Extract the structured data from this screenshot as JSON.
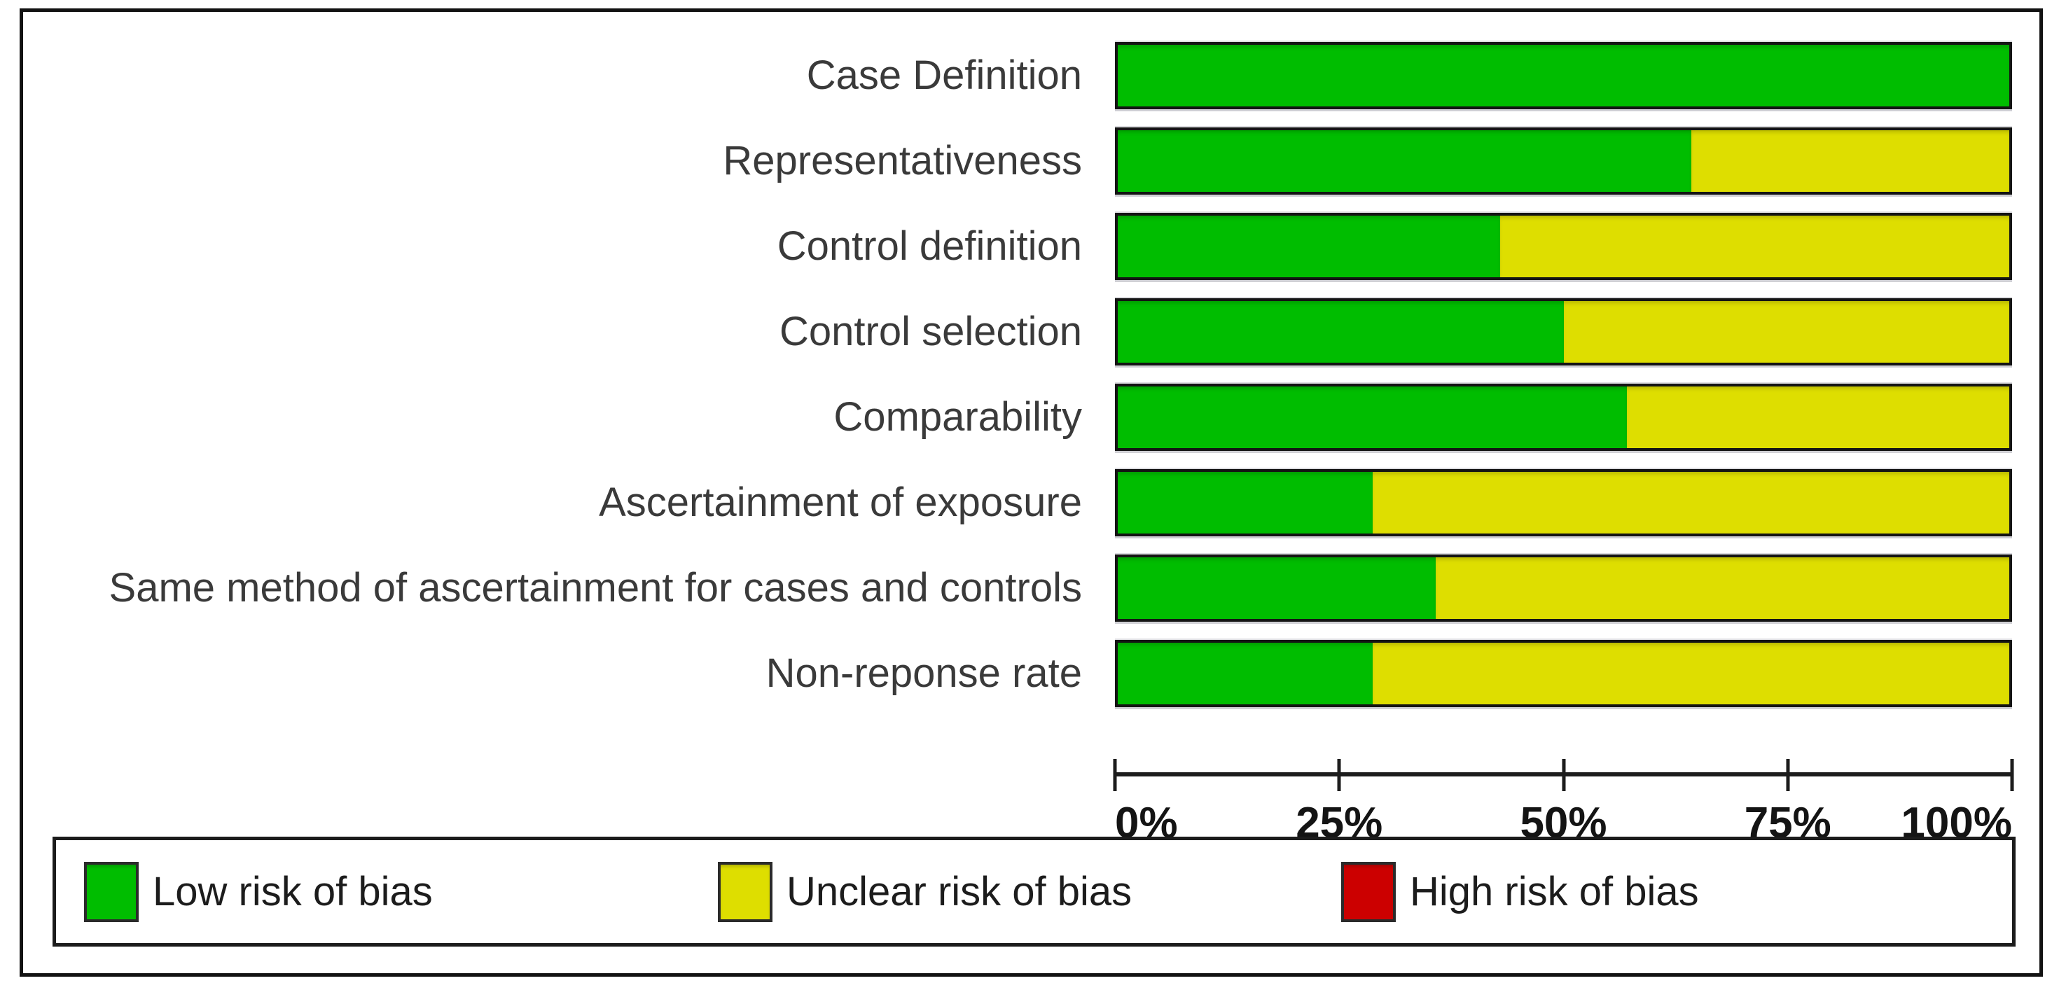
{
  "chart_data": {
    "type": "bar",
    "variant": "horizontal-stacked-100pct",
    "title": "",
    "xlabel": "",
    "ylabel": "",
    "xlim": [
      0,
      100
    ],
    "grid": false,
    "legend_position": "bottom-box",
    "categories": [
      "Case Definition",
      "Representativeness",
      "Control definition",
      "Control selection",
      "Comparability",
      "Ascertainment of exposure",
      "Same method of ascertainment for cases and controls",
      "Non-reponse rate"
    ],
    "series": [
      {
        "name": "Low risk of bias",
        "color": "#00bd00",
        "values_pct": [
          100,
          64.3,
          42.9,
          50,
          57.1,
          28.6,
          35.7,
          28.6
        ]
      },
      {
        "name": "Unclear risk of bias",
        "color": "#dede00",
        "values_pct": [
          0,
          35.7,
          57.1,
          50,
          42.9,
          71.4,
          64.3,
          71.4
        ]
      },
      {
        "name": "High risk of bias",
        "color": "#cc0000",
        "values_pct": [
          0,
          0,
          0,
          0,
          0,
          0,
          0,
          0
        ]
      }
    ],
    "x_ticks": [
      "0%",
      "25%",
      "50%",
      "75%",
      "100%"
    ]
  },
  "colors": {
    "frame_border": "#121212",
    "axis": "#1c1c1c",
    "category_label_text": "#3a3a3a",
    "legend_border": "#1c1c1c",
    "background": "#ffffff"
  }
}
